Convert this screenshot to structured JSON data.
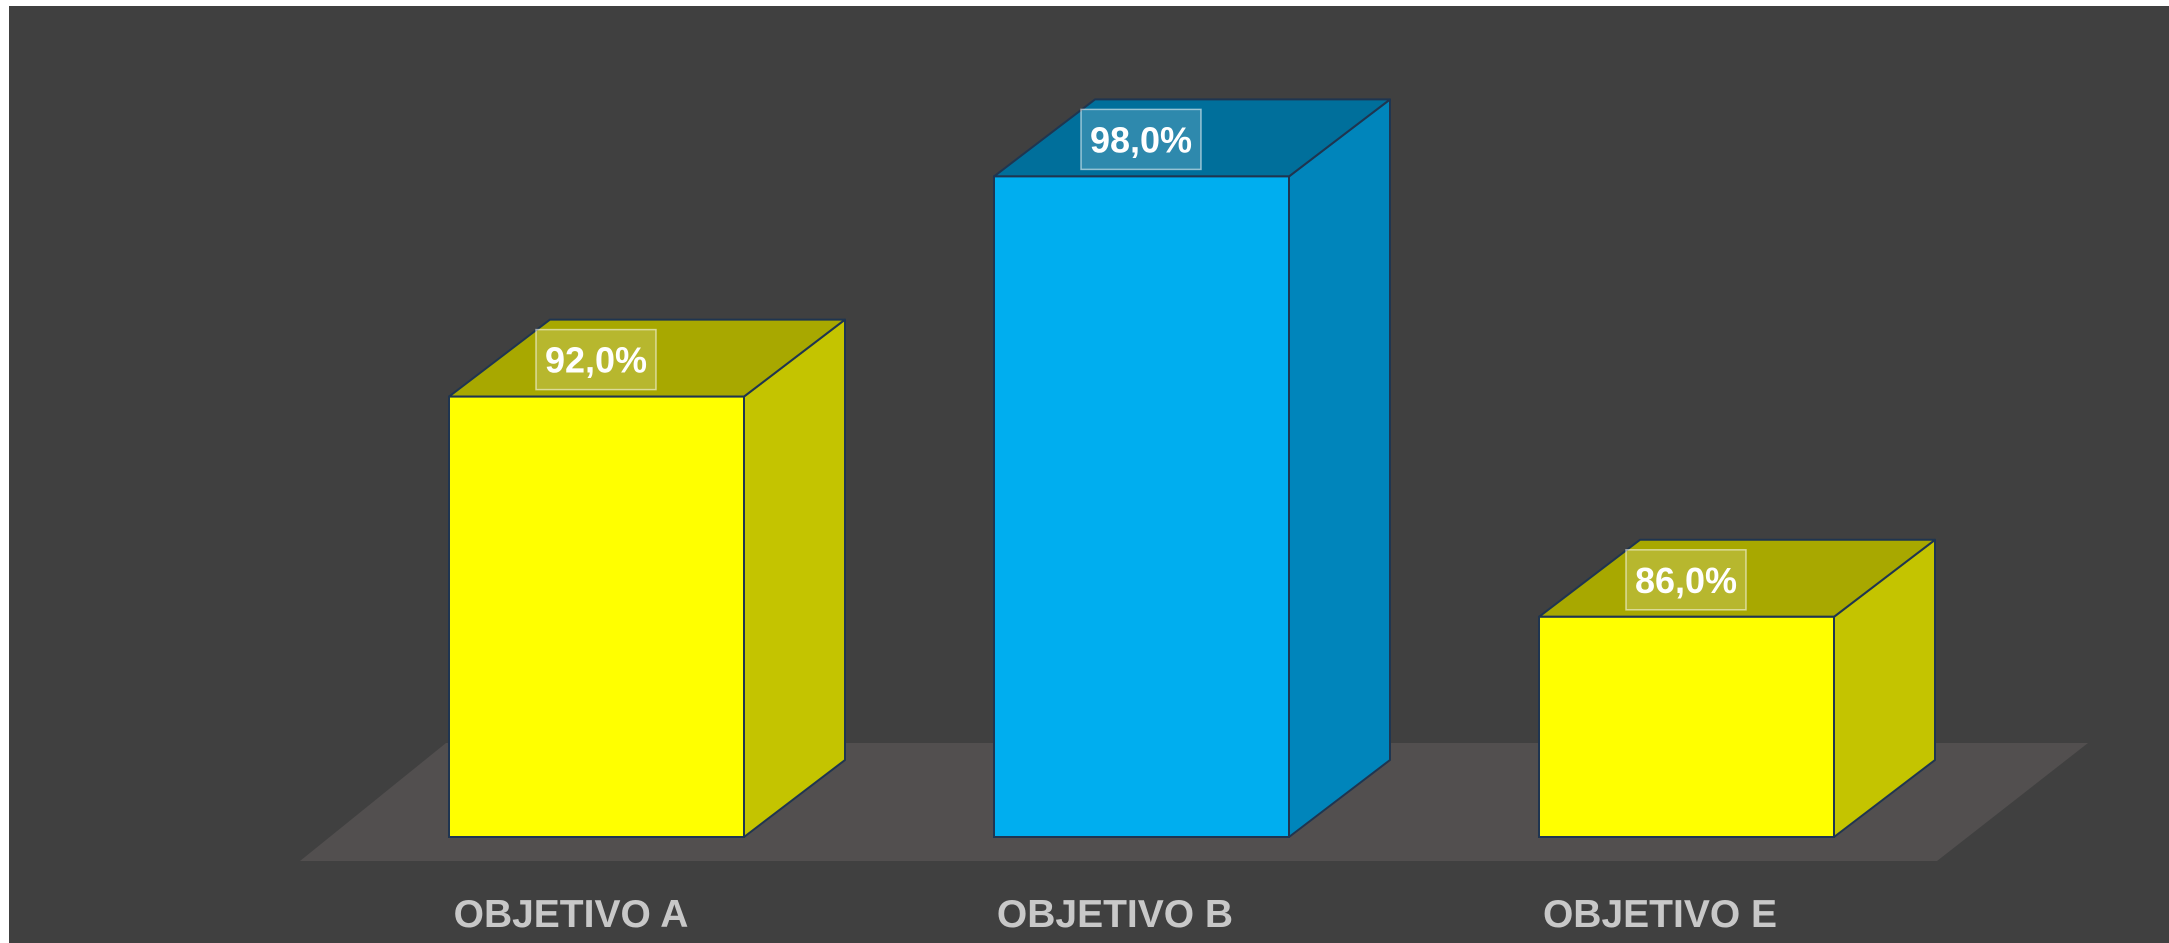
{
  "chart_data": {
    "type": "bar",
    "categories": [
      "OBJETIVO A",
      "OBJETIVO B",
      "OBJETIVO E"
    ],
    "values": [
      92.0,
      98.0,
      86.0
    ],
    "value_labels": [
      "92,0%",
      "98,0%",
      "86,0%"
    ],
    "ylim": [
      80,
      100
    ],
    "grid": false,
    "legend": "none",
    "style": "3d-column",
    "title": "",
    "xlabel": "",
    "ylabel": ""
  },
  "colors": {
    "background": "#404040",
    "floor": "#524f4f",
    "bar_yellow_front": "#ffff00",
    "bar_yellow_side": "#c4c400",
    "bar_yellow_top": "#a8a800",
    "bar_blue_front": "#00aeef",
    "bar_blue_side": "#0085bb",
    "bar_blue_top": "#006f9b",
    "label_text": "#c8c8c8",
    "value_text": "#ffffff"
  },
  "bar_colors": [
    "yellow",
    "blue",
    "yellow"
  ]
}
